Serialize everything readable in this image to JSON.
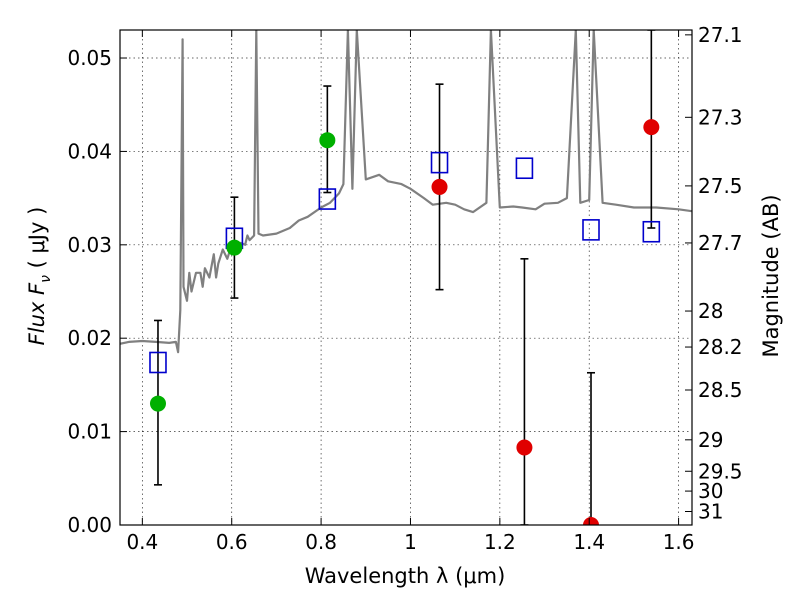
{
  "chart_data": {
    "type": "scatter",
    "xlabel": "Wavelength  λ (μm)",
    "ylabel": "Flux  F",
    "ylabel_sub": "ν",
    "ylabel_unit": " ( μJy )",
    "y2label": "Magnitude (AB)",
    "xlim": [
      0.35,
      1.63
    ],
    "ylim": [
      0.0,
      0.053
    ],
    "x_ticks": [
      0.4,
      0.6,
      0.8,
      1.0,
      1.2,
      1.4,
      1.6
    ],
    "x_tick_labels": [
      "0.4",
      "0.6",
      "0.8",
      "1",
      "1.2",
      "1.4",
      "1.6"
    ],
    "y_ticks": [
      0.0,
      0.01,
      0.02,
      0.03,
      0.04,
      0.05
    ],
    "y_tick_labels": [
      "0.00",
      "0.01",
      "0.02",
      "0.03",
      "0.04",
      "0.05"
    ],
    "y2_ticks": [
      {
        "label": "27.1",
        "mag": 27.1
      },
      {
        "label": "27.3",
        "mag": 27.3
      },
      {
        "label": "27.5",
        "mag": 27.5
      },
      {
        "label": "27.7",
        "mag": 27.7
      },
      {
        "label": "28",
        "mag": 28.0
      },
      {
        "label": "28.2",
        "mag": 28.2
      },
      {
        "label": "28.5",
        "mag": 28.5
      },
      {
        "label": "29",
        "mag": 29.0
      },
      {
        "label": "29.5",
        "mag": 29.5
      },
      {
        "label": "30",
        "mag": 30.0
      },
      {
        "label": "31",
        "mag": 31.0
      }
    ],
    "grid": true,
    "colors": {
      "model": "#808080",
      "detection": "#00b000",
      "non_detection": "#e00000",
      "model_band": "#0000cc",
      "errorbar": "#000000"
    },
    "series": [
      {
        "kind": "line",
        "points": [
          [
            0.35,
            0.0194
          ],
          [
            0.37,
            0.0196
          ],
          [
            0.4,
            0.0197
          ],
          [
            0.43,
            0.0196
          ],
          [
            0.46,
            0.0195
          ],
          [
            0.475,
            0.0196
          ],
          [
            0.48,
            0.0185
          ],
          [
            0.485,
            0.023
          ],
          [
            0.49,
            0.052
          ],
          [
            0.492,
            0.0255
          ],
          [
            0.5,
            0.024
          ],
          [
            0.505,
            0.027
          ],
          [
            0.51,
            0.025
          ],
          [
            0.52,
            0.027
          ],
          [
            0.53,
            0.027
          ],
          [
            0.535,
            0.0255
          ],
          [
            0.54,
            0.0275
          ],
          [
            0.55,
            0.0265
          ],
          [
            0.56,
            0.029
          ],
          [
            0.565,
            0.0265
          ],
          [
            0.57,
            0.028
          ],
          [
            0.58,
            0.0295
          ],
          [
            0.59,
            0.0285
          ],
          [
            0.6,
            0.03
          ],
          [
            0.61,
            0.0295
          ],
          [
            0.62,
            0.0302
          ],
          [
            0.63,
            0.03
          ],
          [
            0.635,
            0.031
          ],
          [
            0.64,
            0.0305
          ],
          [
            0.65,
            0.031
          ],
          [
            0.655,
            0.053
          ],
          [
            0.66,
            0.0312
          ],
          [
            0.67,
            0.031
          ],
          [
            0.7,
            0.0312
          ],
          [
            0.73,
            0.0318
          ],
          [
            0.75,
            0.0326
          ],
          [
            0.77,
            0.033
          ],
          [
            0.8,
            0.034
          ],
          [
            0.82,
            0.0345
          ],
          [
            0.84,
            0.0355
          ],
          [
            0.85,
            0.0365
          ],
          [
            0.86,
            0.053
          ],
          [
            0.87,
            0.036
          ],
          [
            0.88,
            0.053
          ],
          [
            0.9,
            0.037
          ],
          [
            0.93,
            0.0375
          ],
          [
            0.95,
            0.0368
          ],
          [
            0.98,
            0.0365
          ],
          [
            1.0,
            0.036
          ],
          [
            1.03,
            0.035
          ],
          [
            1.05,
            0.0343
          ],
          [
            1.08,
            0.0345
          ],
          [
            1.1,
            0.0343
          ],
          [
            1.12,
            0.0338
          ],
          [
            1.14,
            0.0335
          ],
          [
            1.17,
            0.0345
          ],
          [
            1.18,
            0.053
          ],
          [
            1.2,
            0.034
          ],
          [
            1.23,
            0.0341
          ],
          [
            1.25,
            0.034
          ],
          [
            1.28,
            0.0338
          ],
          [
            1.3,
            0.0344
          ],
          [
            1.33,
            0.0345
          ],
          [
            1.35,
            0.035
          ],
          [
            1.37,
            0.053
          ],
          [
            1.38,
            0.0345
          ],
          [
            1.4,
            0.0348
          ],
          [
            1.41,
            0.053
          ],
          [
            1.43,
            0.0345
          ],
          [
            1.46,
            0.0343
          ],
          [
            1.5,
            0.034
          ],
          [
            1.55,
            0.034
          ],
          [
            1.6,
            0.0338
          ],
          [
            1.63,
            0.0336
          ]
        ]
      },
      {
        "kind": "detection",
        "points": [
          {
            "x": 0.435,
            "y": 0.013
          },
          {
            "x": 0.606,
            "y": 0.0297
          },
          {
            "x": 0.814,
            "y": 0.0412
          }
        ]
      },
      {
        "kind": "non_detection",
        "points": [
          {
            "x": 1.065,
            "y": 0.0362
          },
          {
            "x": 1.255,
            "y": 0.0083
          },
          {
            "x": 1.404,
            "y": 0.0
          },
          {
            "x": 1.539,
            "y": 0.0426
          }
        ]
      },
      {
        "kind": "model_band",
        "points": [
          {
            "x": 0.435,
            "y": 0.0174
          },
          {
            "x": 0.606,
            "y": 0.0307
          },
          {
            "x": 0.814,
            "y": 0.0349
          },
          {
            "x": 1.065,
            "y": 0.0388
          },
          {
            "x": 1.255,
            "y": 0.0382
          },
          {
            "x": 1.404,
            "y": 0.0316
          },
          {
            "x": 1.539,
            "y": 0.0314
          }
        ]
      },
      {
        "kind": "errorbar",
        "bars": [
          {
            "x": 0.435,
            "low": 0.0043,
            "high": 0.0219
          },
          {
            "x": 0.606,
            "low": 0.0243,
            "high": 0.0351
          },
          {
            "x": 0.814,
            "low": 0.0356,
            "high": 0.047
          },
          {
            "x": 1.065,
            "low": 0.0252,
            "high": 0.0472
          },
          {
            "x": 1.255,
            "low": 0.0,
            "high": 0.0285
          },
          {
            "x": 1.404,
            "low": 0.0,
            "high": 0.0163
          },
          {
            "x": 1.539,
            "low": 0.0318,
            "high": 0.053
          }
        ]
      }
    ]
  }
}
